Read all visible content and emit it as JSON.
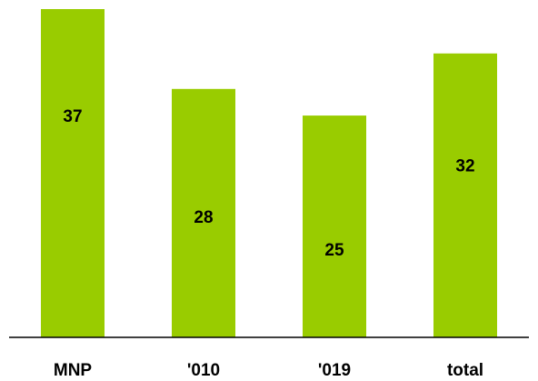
{
  "chart_data": {
    "type": "bar",
    "categories": [
      "MNP",
      "'010",
      "'019",
      "total"
    ],
    "values": [
      37,
      28,
      25,
      32
    ],
    "color": "#99cc00",
    "ylim": [
      0,
      37
    ]
  }
}
